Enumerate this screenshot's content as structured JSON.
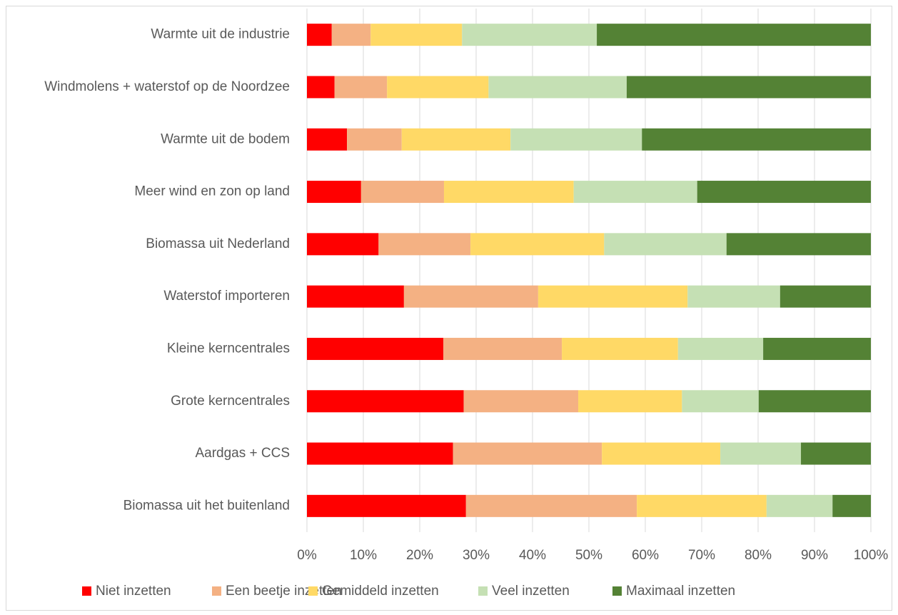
{
  "chart_data": {
    "type": "stacked_barh",
    "categories": [
      "Warmte uit de industrie",
      "Windmolens + waterstof op de Noordzee",
      "Warmte uit de bodem",
      "Meer wind en zon op land",
      "Biomassa uit Nederland",
      "Waterstof importeren",
      "Kleine kerncentrales",
      "Grote kerncentrales",
      "Aardgas + CCS",
      "Biomassa uit het buitenland"
    ],
    "series": [
      {
        "name": "Niet inzetten",
        "color": "#ff0000",
        "values": [
          4.4,
          4.9,
          7.1,
          9.6,
          12.7,
          17.2,
          24.2,
          27.8,
          25.9,
          28.2
        ]
      },
      {
        "name": "Een beetje inzetten",
        "color": "#f4b183",
        "values": [
          6.9,
          9.3,
          9.7,
          14.7,
          16.3,
          23.8,
          21.0,
          20.3,
          26.4,
          30.3
        ]
      },
      {
        "name": "Gemiddeld inzetten",
        "color": "#ffd966",
        "values": [
          16.2,
          18.0,
          19.3,
          23.0,
          23.7,
          26.5,
          20.6,
          18.4,
          21.0,
          23.0
        ]
      },
      {
        "name": "Veel inzetten",
        "color": "#c5e0b4",
        "values": [
          23.9,
          24.5,
          23.3,
          21.9,
          21.7,
          16.4,
          15.1,
          13.6,
          14.3,
          11.7
        ]
      },
      {
        "name": "Maximaal inzetten",
        "color": "#548235",
        "values": [
          48.6,
          43.3,
          40.6,
          30.8,
          25.6,
          16.1,
          19.1,
          19.9,
          12.4,
          6.8
        ]
      }
    ],
    "xlim": [
      0,
      100
    ],
    "xticks": [
      {
        "value": 0,
        "label": "0%"
      },
      {
        "value": 10,
        "label": "10%"
      },
      {
        "value": 20,
        "label": "20%"
      },
      {
        "value": 30,
        "label": "30%"
      },
      {
        "value": 40,
        "label": "40%"
      },
      {
        "value": 50,
        "label": "50%"
      },
      {
        "value": 60,
        "label": "60%"
      },
      {
        "value": 70,
        "label": "70%"
      },
      {
        "value": 80,
        "label": "80%"
      },
      {
        "value": 90,
        "label": "90%"
      },
      {
        "value": 100,
        "label": "100%"
      }
    ],
    "grid": true,
    "legend": "bottom"
  }
}
